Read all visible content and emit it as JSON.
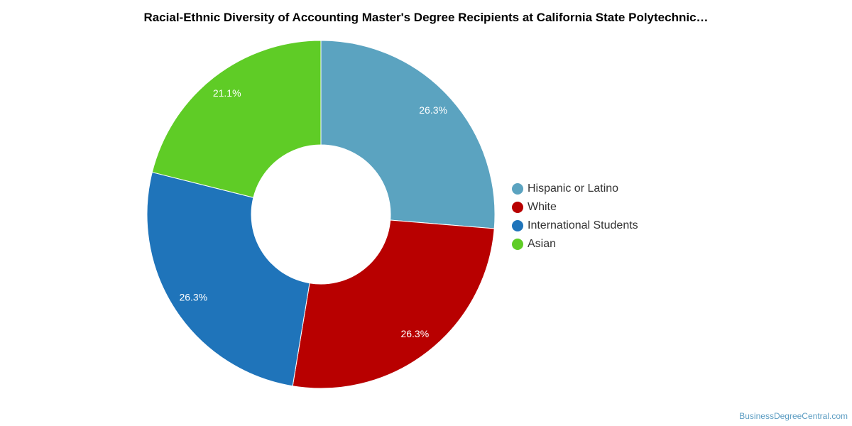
{
  "chart_data": {
    "type": "pie",
    "donut": true,
    "title": "Racial-Ethnic Diversity of Accounting Master's Degree Recipients at California State Polytechnic…",
    "slices": [
      {
        "name": "Hispanic or Latino",
        "value": 26.3,
        "label": "26.3%",
        "color": "#5ba3c0"
      },
      {
        "name": "White",
        "value": 26.3,
        "label": "26.3%",
        "color": "#b80000"
      },
      {
        "name": "International Students",
        "value": 26.3,
        "label": "26.3%",
        "color": "#1f74ba"
      },
      {
        "name": "Asian",
        "value": 21.1,
        "label": "21.1%",
        "color": "#5fcc26"
      }
    ],
    "legend_position": "right"
  },
  "watermark": "BusinessDegreeCentral.com"
}
